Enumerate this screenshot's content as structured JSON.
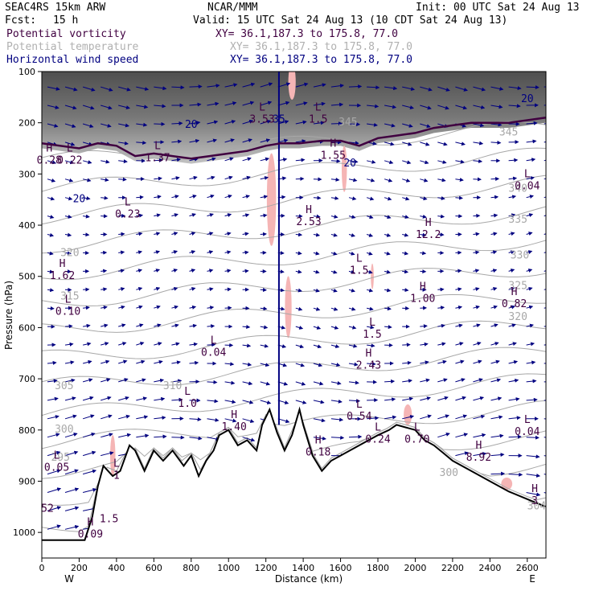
{
  "header": {
    "model": "SEAC4RS 15km ARW",
    "org": "NCAR/MMM",
    "init": "Init: 00 UTC Sat 24 Aug 13",
    "fcst_label": "Fcst:",
    "fcst_value": "15 h",
    "valid": "Valid: 15 UTC Sat 24 Aug 13 (10 CDT Sat 24 Aug 13)",
    "fields": [
      {
        "name": "Potential vorticity",
        "xy": "XY=  36.1,187.3 to 175.8, 77.0"
      },
      {
        "name": "Potential temperature",
        "xy": "XY=  36.1,187.3 to 175.8, 77.0"
      },
      {
        "name": "Horizontal wind speed",
        "xy": "XY=  36.1,187.3 to 175.8, 77.0"
      }
    ]
  },
  "colors": {
    "theta": "#a8a8a8",
    "wind": "#000080",
    "pv": "#400040",
    "terrain": "#000000",
    "shade_dark": "#505050",
    "shade_pink": "#f5b5b5"
  },
  "chart_data": {
    "type": "cross-section",
    "xlabel": "Distance (km)",
    "ylabel": "Pressure (hPa)",
    "xlim": [
      0,
      2700
    ],
    "ylim": [
      1050,
      100
    ],
    "x_ticks": [
      0,
      200,
      400,
      600,
      800,
      1000,
      1200,
      1400,
      1600,
      1800,
      2000,
      2200,
      2400,
      2600
    ],
    "y_ticks": [
      100,
      200,
      300,
      400,
      500,
      600,
      700,
      800,
      900,
      1000
    ],
    "x_end_labels": {
      "left": "W",
      "right": "E"
    },
    "terrain_profile": [
      [
        0,
        1015
      ],
      [
        230,
        1015
      ],
      [
        270,
        970
      ],
      [
        300,
        910
      ],
      [
        330,
        870
      ],
      [
        380,
        890
      ],
      [
        420,
        880
      ],
      [
        470,
        830
      ],
      [
        500,
        840
      ],
      [
        550,
        880
      ],
      [
        600,
        840
      ],
      [
        650,
        860
      ],
      [
        700,
        840
      ],
      [
        760,
        870
      ],
      [
        800,
        850
      ],
      [
        840,
        890
      ],
      [
        880,
        860
      ],
      [
        920,
        840
      ],
      [
        950,
        810
      ],
      [
        1000,
        800
      ],
      [
        1050,
        830
      ],
      [
        1100,
        820
      ],
      [
        1150,
        840
      ],
      [
        1180,
        790
      ],
      [
        1220,
        760
      ],
      [
        1260,
        805
      ],
      [
        1300,
        840
      ],
      [
        1340,
        810
      ],
      [
        1380,
        760
      ],
      [
        1400,
        790
      ],
      [
        1450,
        850
      ],
      [
        1500,
        880
      ],
      [
        1550,
        860
      ],
      [
        1600,
        850
      ],
      [
        1650,
        840
      ],
      [
        1700,
        830
      ],
      [
        1750,
        820
      ],
      [
        1800,
        810
      ],
      [
        1860,
        800
      ],
      [
        1900,
        790
      ],
      [
        1950,
        795
      ],
      [
        2000,
        800
      ],
      [
        2050,
        820
      ],
      [
        2100,
        830
      ],
      [
        2150,
        845
      ],
      [
        2200,
        860
      ],
      [
        2300,
        880
      ],
      [
        2400,
        900
      ],
      [
        2500,
        920
      ],
      [
        2600,
        935
      ],
      [
        2700,
        950
      ]
    ],
    "tropopause_pv": [
      [
        0,
        240
      ],
      [
        200,
        250
      ],
      [
        300,
        240
      ],
      [
        400,
        245
      ],
      [
        500,
        265
      ],
      [
        600,
        260
      ],
      [
        700,
        265
      ],
      [
        800,
        270
      ],
      [
        900,
        265
      ],
      [
        1000,
        260
      ],
      [
        1100,
        255
      ],
      [
        1200,
        245
      ],
      [
        1280,
        240
      ],
      [
        1380,
        240
      ],
      [
        1500,
        235
      ],
      [
        1600,
        235
      ],
      [
        1700,
        245
      ],
      [
        1800,
        230
      ],
      [
        1900,
        225
      ],
      [
        2000,
        220
      ],
      [
        2100,
        210
      ],
      [
        2200,
        205
      ],
      [
        2300,
        200
      ],
      [
        2400,
        200
      ],
      [
        2500,
        200
      ],
      [
        2600,
        195
      ],
      [
        2700,
        190
      ]
    ],
    "theta_labels": [
      {
        "x": 2550,
        "p": 335,
        "text": "340"
      },
      {
        "x": 2550,
        "p": 395,
        "text": "335"
      },
      {
        "x": 2560,
        "p": 465,
        "text": "330"
      },
      {
        "x": 2550,
        "p": 525,
        "text": "325"
      },
      {
        "x": 2550,
        "p": 585,
        "text": "320"
      },
      {
        "x": 120,
        "p": 720,
        "text": "305"
      },
      {
        "x": 120,
        "p": 805,
        "text": "300"
      },
      {
        "x": 100,
        "p": 860,
        "text": "295"
      },
      {
        "x": 150,
        "p": 460,
        "text": "320"
      },
      {
        "x": 150,
        "p": 545,
        "text": "315"
      },
      {
        "x": 700,
        "p": 720,
        "text": "310"
      },
      {
        "x": 2180,
        "p": 890,
        "text": "300"
      },
      {
        "x": 2650,
        "p": 955,
        "text": "304"
      },
      {
        "x": 1640,
        "p": 205,
        "text": "345"
      },
      {
        "x": 2500,
        "p": 225,
        "text": "345"
      }
    ],
    "wind_labels": [
      {
        "x": 800,
        "p": 210,
        "text": "20"
      },
      {
        "x": 200,
        "p": 355,
        "text": "20"
      },
      {
        "x": 1650,
        "p": 285,
        "text": "20"
      },
      {
        "x": 1270,
        "p": 200,
        "text": "35"
      },
      {
        "x": 2600,
        "p": 160,
        "text": "20"
      }
    ],
    "hl_labels": [
      {
        "x": 40,
        "p": 280,
        "letter": "H",
        "value": "0.28"
      },
      {
        "x": 150,
        "p": 280,
        "letter": "L",
        "value": "0.22"
      },
      {
        "x": 620,
        "p": 275,
        "letter": "L",
        "value": "1.37"
      },
      {
        "x": 1180,
        "p": 200,
        "letter": "L",
        "value": "3.53"
      },
      {
        "x": 1480,
        "p": 200,
        "letter": "L",
        "value": "1.5"
      },
      {
        "x": 1560,
        "p": 270,
        "letter": "H",
        "value": "1.55"
      },
      {
        "x": 460,
        "p": 385,
        "letter": "L",
        "value": "0.23"
      },
      {
        "x": 1430,
        "p": 400,
        "letter": "H",
        "value": "2.53"
      },
      {
        "x": 2600,
        "p": 330,
        "letter": "L",
        "value": "0.04"
      },
      {
        "x": 2070,
        "p": 425,
        "letter": "H",
        "value": "12.2"
      },
      {
        "x": 110,
        "p": 505,
        "letter": "H",
        "value": "1.62"
      },
      {
        "x": 1700,
        "p": 495,
        "letter": "L",
        "value": "1.5"
      },
      {
        "x": 2040,
        "p": 550,
        "letter": "H",
        "value": "1.00"
      },
      {
        "x": 2530,
        "p": 560,
        "letter": "H",
        "value": "0.82"
      },
      {
        "x": 140,
        "p": 575,
        "letter": "L",
        "value": "0.10"
      },
      {
        "x": 1770,
        "p": 620,
        "letter": "L",
        "value": "1.5"
      },
      {
        "x": 920,
        "p": 655,
        "letter": "L",
        "value": "0.04"
      },
      {
        "x": 1750,
        "p": 680,
        "letter": "H",
        "value": "2.43"
      },
      {
        "x": 780,
        "p": 755,
        "letter": "L",
        "value": "1.0"
      },
      {
        "x": 1030,
        "p": 800,
        "letter": "H",
        "value": "1.40"
      },
      {
        "x": 1700,
        "p": 780,
        "letter": "L",
        "value": "0.54"
      },
      {
        "x": 1800,
        "p": 825,
        "letter": "L",
        "value": "0.24"
      },
      {
        "x": 2010,
        "p": 825,
        "letter": "L",
        "value": "0.70"
      },
      {
        "x": 1480,
        "p": 850,
        "letter": "H",
        "value": "0.18"
      },
      {
        "x": 2340,
        "p": 860,
        "letter": "H",
        "value": "8.92"
      },
      {
        "x": 2600,
        "p": 810,
        "letter": "L",
        "value": "0.04"
      },
      {
        "x": 80,
        "p": 880,
        "letter": "L",
        "value": "0.05"
      },
      {
        "x": 400,
        "p": 895,
        "letter": "L",
        "value": "1"
      },
      {
        "x": 2640,
        "p": 945,
        "letter": "H",
        "value": "3"
      },
      {
        "x": 360,
        "p": 980,
        "letter": "",
        "value": "1.5"
      },
      {
        "x": 260,
        "p": 1010,
        "letter": "H",
        "value": "0.09"
      },
      {
        "x": 30,
        "p": 960,
        "letter": "",
        "value": "52"
      }
    ]
  }
}
